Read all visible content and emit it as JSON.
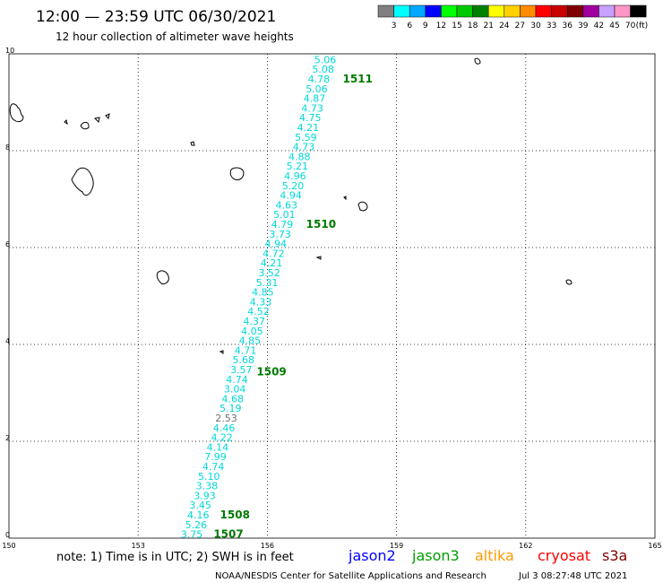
{
  "header": {
    "title": "12:00 — 23:59 UTC 06/30/2021",
    "subtitle": "12 hour collection of altimeter wave heights"
  },
  "color_scale": {
    "unit": "(ft)",
    "bins": [
      {
        "color": "#808080",
        "label": "3"
      },
      {
        "color": "#00ffff",
        "label": "6"
      },
      {
        "color": "#00a8ff",
        "label": "9"
      },
      {
        "color": "#0000ff",
        "label": "12"
      },
      {
        "color": "#00ff00",
        "label": "15"
      },
      {
        "color": "#00c800",
        "label": "18"
      },
      {
        "color": "#008000",
        "label": "21"
      },
      {
        "color": "#ffff00",
        "label": "24"
      },
      {
        "color": "#ffd000",
        "label": "27"
      },
      {
        "color": "#ff8c00",
        "label": "30"
      },
      {
        "color": "#ff0000",
        "label": "33"
      },
      {
        "color": "#c80000",
        "label": "36"
      },
      {
        "color": "#800000",
        "label": "39"
      },
      {
        "color": "#a000a0",
        "label": "42"
      },
      {
        "color": "#c8a0ff",
        "label": "45"
      },
      {
        "color": "#ff96c8",
        "label": "70"
      },
      {
        "color": "#000000",
        "label": ""
      }
    ]
  },
  "map": {
    "lon_range": [
      150,
      165
    ],
    "lat_range": [
      0,
      10
    ],
    "x_ticks": [
      "150",
      "153",
      "156",
      "159",
      "162",
      "165"
    ],
    "y_ticks": [
      "0",
      "2",
      "4",
      "6",
      "8",
      "10"
    ],
    "observations": [
      {
        "lon": 157.6,
        "lat": 9.9,
        "value": "5.06",
        "color": "#00d8d8"
      },
      {
        "lon": 157.55,
        "lat": 9.7,
        "value": "5.08",
        "color": "#00d8d8"
      },
      {
        "lon": 157.45,
        "lat": 9.5,
        "value": "4.78",
        "color": "#00d8d8"
      },
      {
        "lon": 157.4,
        "lat": 9.3,
        "value": "5.06",
        "color": "#00d8d8"
      },
      {
        "lon": 157.35,
        "lat": 9.1,
        "value": "4.87",
        "color": "#00d8d8"
      },
      {
        "lon": 157.3,
        "lat": 8.9,
        "value": "4.73",
        "color": "#00d8d8"
      },
      {
        "lon": 157.25,
        "lat": 8.7,
        "value": "4.75",
        "color": "#00d8d8"
      },
      {
        "lon": 157.2,
        "lat": 8.5,
        "value": "4.21",
        "color": "#00d8d8"
      },
      {
        "lon": 157.15,
        "lat": 8.3,
        "value": "5.59",
        "color": "#00d8d8"
      },
      {
        "lon": 157.1,
        "lat": 8.1,
        "value": "4.73",
        "color": "#00d8d8"
      },
      {
        "lon": 157.0,
        "lat": 7.9,
        "value": "4.88",
        "color": "#00d8d8"
      },
      {
        "lon": 156.95,
        "lat": 7.7,
        "value": "5.21",
        "color": "#00d8d8"
      },
      {
        "lon": 156.9,
        "lat": 7.5,
        "value": "4.96",
        "color": "#00d8d8"
      },
      {
        "lon": 156.85,
        "lat": 7.3,
        "value": "5.20",
        "color": "#00d8d8"
      },
      {
        "lon": 156.8,
        "lat": 7.1,
        "value": "4.94",
        "color": "#00d8d8"
      },
      {
        "lon": 156.7,
        "lat": 6.9,
        "value": "4.63",
        "color": "#00d8d8"
      },
      {
        "lon": 156.65,
        "lat": 6.7,
        "value": "5.01",
        "color": "#00d8d8"
      },
      {
        "lon": 156.6,
        "lat": 6.5,
        "value": "4.79",
        "color": "#00d8d8"
      },
      {
        "lon": 156.55,
        "lat": 6.3,
        "value": "3.73",
        "color": "#00d8d8"
      },
      {
        "lon": 156.45,
        "lat": 6.1,
        "value": "4.94",
        "color": "#00d8d8"
      },
      {
        "lon": 156.4,
        "lat": 5.9,
        "value": "4.72",
        "color": "#00d8d8"
      },
      {
        "lon": 156.35,
        "lat": 5.7,
        "value": "4.21",
        "color": "#00d8d8"
      },
      {
        "lon": 156.3,
        "lat": 5.5,
        "value": "3.52",
        "color": "#00d8d8"
      },
      {
        "lon": 156.25,
        "lat": 5.3,
        "value": "5.31",
        "color": "#00d8d8"
      },
      {
        "lon": 156.15,
        "lat": 5.1,
        "value": "4.85",
        "color": "#00d8d8"
      },
      {
        "lon": 156.1,
        "lat": 4.9,
        "value": "4.33",
        "color": "#00d8d8"
      },
      {
        "lon": 156.05,
        "lat": 4.7,
        "value": "4.52",
        "color": "#00d8d8"
      },
      {
        "lon": 155.95,
        "lat": 4.5,
        "value": "4.37",
        "color": "#00d8d8"
      },
      {
        "lon": 155.9,
        "lat": 4.3,
        "value": "4.05",
        "color": "#00d8d8"
      },
      {
        "lon": 155.85,
        "lat": 4.1,
        "value": "4.85",
        "color": "#00d8d8"
      },
      {
        "lon": 155.75,
        "lat": 3.9,
        "value": "4.71",
        "color": "#00d8d8"
      },
      {
        "lon": 155.7,
        "lat": 3.7,
        "value": "5.68",
        "color": "#00d8d8"
      },
      {
        "lon": 155.65,
        "lat": 3.5,
        "value": "3.57",
        "color": "#00d8d8"
      },
      {
        "lon": 155.55,
        "lat": 3.3,
        "value": "4.74",
        "color": "#00d8d8"
      },
      {
        "lon": 155.5,
        "lat": 3.1,
        "value": "3.04",
        "color": "#00d8d8"
      },
      {
        "lon": 155.45,
        "lat": 2.9,
        "value": "4.68",
        "color": "#00d8d8"
      },
      {
        "lon": 155.4,
        "lat": 2.7,
        "value": "5.19",
        "color": "#00d8d8"
      },
      {
        "lon": 155.3,
        "lat": 2.5,
        "value": "2.53",
        "color": "#707070"
      },
      {
        "lon": 155.25,
        "lat": 2.3,
        "value": "4.46",
        "color": "#00d8d8"
      },
      {
        "lon": 155.2,
        "lat": 2.1,
        "value": "4.22",
        "color": "#00d8d8"
      },
      {
        "lon": 155.1,
        "lat": 1.9,
        "value": "4.14",
        "color": "#00d8d8"
      },
      {
        "lon": 155.05,
        "lat": 1.7,
        "value": "7.99",
        "color": "#00d8d8"
      },
      {
        "lon": 155.0,
        "lat": 1.5,
        "value": "4.74",
        "color": "#00d8d8"
      },
      {
        "lon": 154.9,
        "lat": 1.3,
        "value": "5.10",
        "color": "#00d8d8"
      },
      {
        "lon": 154.85,
        "lat": 1.1,
        "value": "3.38",
        "color": "#00d8d8"
      },
      {
        "lon": 154.8,
        "lat": 0.9,
        "value": "3.93",
        "color": "#00d8d8"
      },
      {
        "lon": 154.7,
        "lat": 0.7,
        "value": "3.45",
        "color": "#00d8d8"
      },
      {
        "lon": 154.65,
        "lat": 0.5,
        "value": "4.16",
        "color": "#00d8d8"
      },
      {
        "lon": 154.6,
        "lat": 0.3,
        "value": "5.26",
        "color": "#00d8d8"
      },
      {
        "lon": 154.5,
        "lat": 0.1,
        "value": "3.75",
        "color": "#00d8d8"
      }
    ],
    "pass_labels": [
      {
        "lon": 157.75,
        "lat": 9.5,
        "label": "1511"
      },
      {
        "lon": 156.9,
        "lat": 6.5,
        "label": "1510"
      },
      {
        "lon": 155.75,
        "lat": 3.45,
        "label": "1509"
      },
      {
        "lon": 154.9,
        "lat": 0.5,
        "label": "1508"
      },
      {
        "lon": 154.75,
        "lat": 0.1,
        "label": "1507"
      }
    ]
  },
  "footer": {
    "note": "note: 1) Time is in UTC; 2) SWH is in feet",
    "satellites": [
      {
        "name": "jason2",
        "color": "#0000ff"
      },
      {
        "name": "jason3",
        "color": "#00a000"
      },
      {
        "name": "altika",
        "color": "#ff9900"
      },
      {
        "name": "cryosat",
        "color": "#ff0000"
      },
      {
        "name": "s3a",
        "color": "#800000"
      }
    ],
    "credit": "NOAA/NESDIS Center for Satellite Applications and Research",
    "timestamp": "Jul  3 08:27:48 UTC 2021"
  }
}
